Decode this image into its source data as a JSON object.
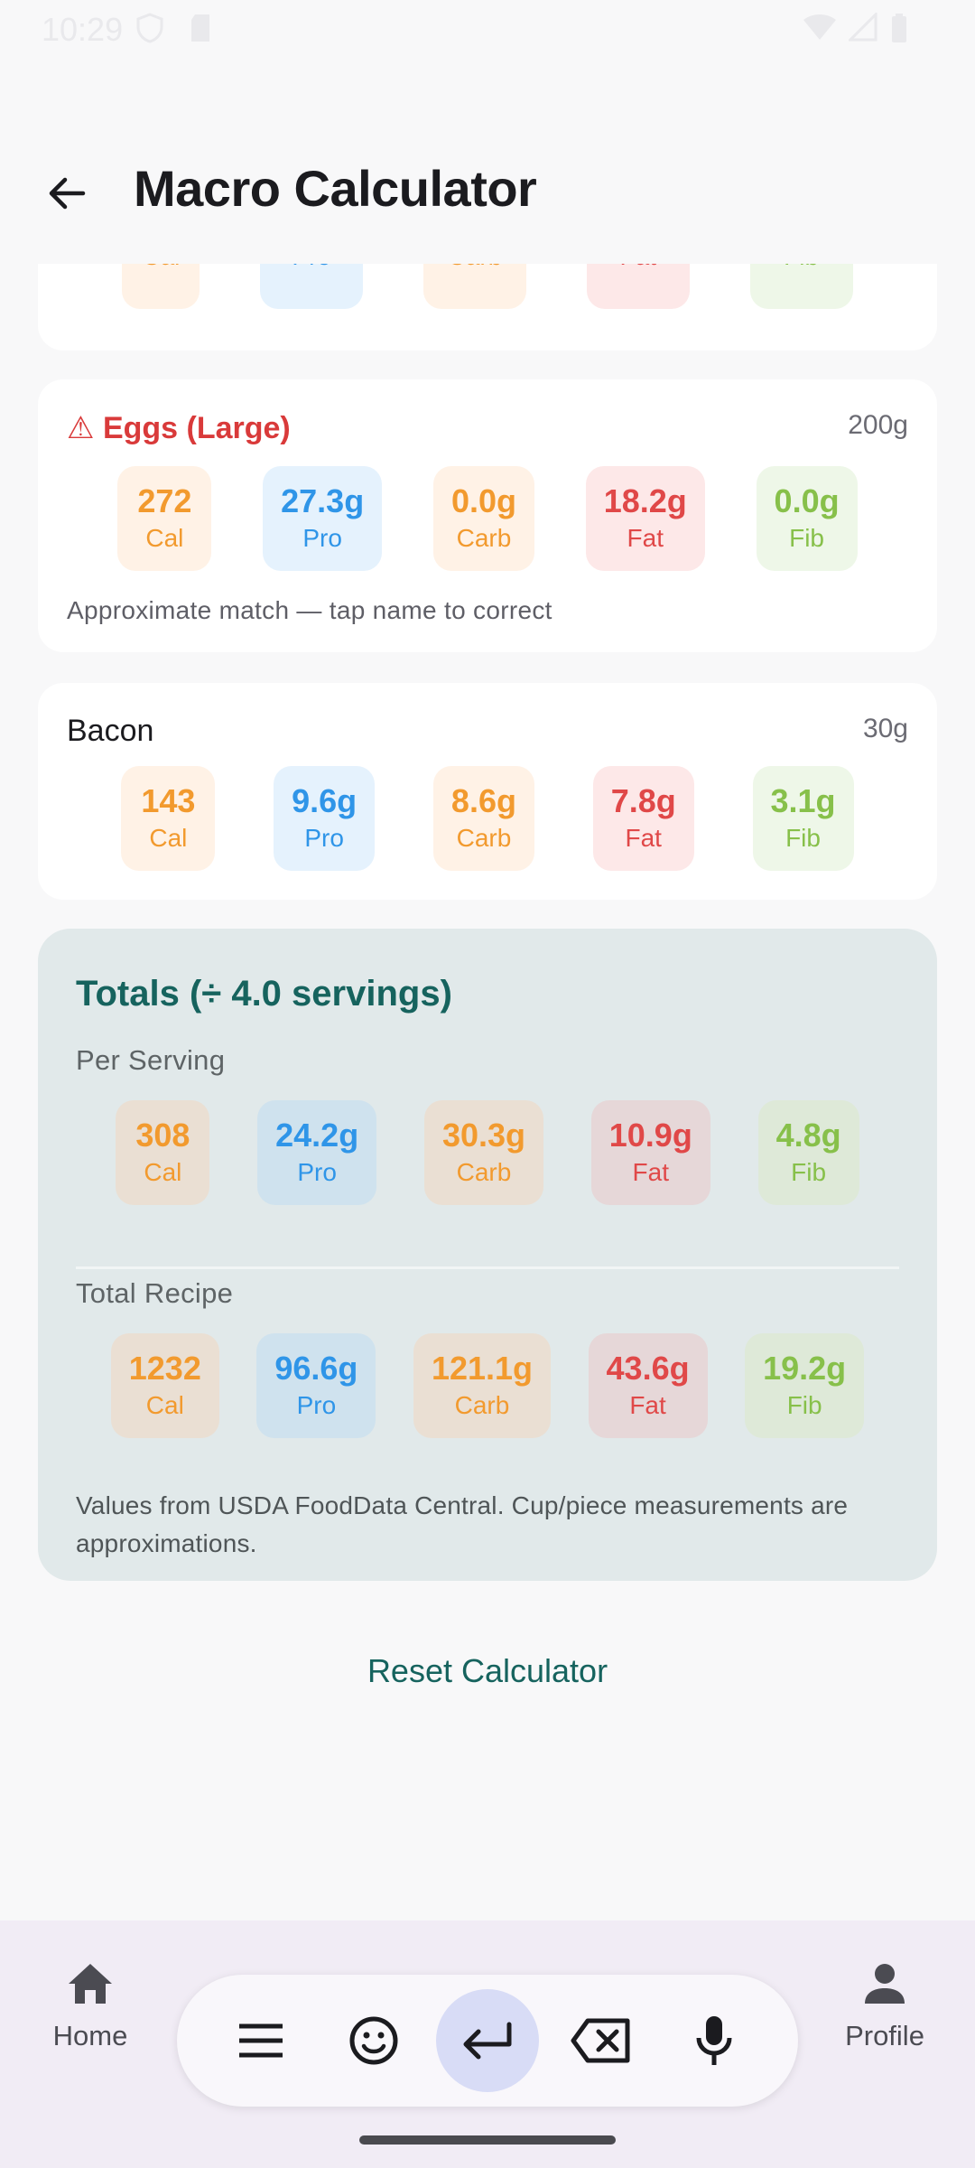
{
  "status": {
    "time": "10:29"
  },
  "app_bar": {
    "title": "Macro Calculator"
  },
  "top_card": {
    "chips": [
      {
        "unit": "Cal"
      },
      {
        "unit": "Pro"
      },
      {
        "unit": "Carb"
      },
      {
        "unit": "Fat"
      },
      {
        "unit": "Fib"
      }
    ]
  },
  "eggs": {
    "name": "Eggs (Large)",
    "warning_symbol": "⚠",
    "weight": "200g",
    "chips": [
      {
        "value": "272",
        "unit": "Cal"
      },
      {
        "value": "27.3g",
        "unit": "Pro"
      },
      {
        "value": "0.0g",
        "unit": "Carb"
      },
      {
        "value": "18.2g",
        "unit": "Fat"
      },
      {
        "value": "0.0g",
        "unit": "Fib"
      }
    ],
    "note": "Approximate match — tap name to correct"
  },
  "bacon": {
    "name": "Bacon",
    "weight": "30g",
    "chips": [
      {
        "value": "143",
        "unit": "Cal"
      },
      {
        "value": "9.6g",
        "unit": "Pro"
      },
      {
        "value": "8.6g",
        "unit": "Carb"
      },
      {
        "value": "7.8g",
        "unit": "Fat"
      },
      {
        "value": "3.1g",
        "unit": "Fib"
      }
    ]
  },
  "totals": {
    "title": "Totals (÷ 4.0 servings)",
    "per_serving_label": "Per Serving",
    "per_serving": [
      {
        "value": "308",
        "unit": "Cal"
      },
      {
        "value": "24.2g",
        "unit": "Pro"
      },
      {
        "value": "30.3g",
        "unit": "Carb"
      },
      {
        "value": "10.9g",
        "unit": "Fat"
      },
      {
        "value": "4.8g",
        "unit": "Fib"
      }
    ],
    "total_recipe_label": "Total Recipe",
    "total_recipe": [
      {
        "value": "1232",
        "unit": "Cal"
      },
      {
        "value": "96.6g",
        "unit": "Pro"
      },
      {
        "value": "121.1g",
        "unit": "Carb"
      },
      {
        "value": "43.6g",
        "unit": "Fat"
      },
      {
        "value": "19.2g",
        "unit": "Fib"
      }
    ],
    "note": "Values from USDA FoodData Central. Cup/piece measurements are approximations."
  },
  "reset_label": "Reset Calculator",
  "nav": {
    "home": "Home",
    "profile": "Profile"
  },
  "colors": {
    "accent": "#16635e",
    "warning": "#d93a3a",
    "cal": "#f29a2e",
    "pro": "#2f95e8",
    "fat": "#e04848",
    "fib": "#87c04a"
  }
}
